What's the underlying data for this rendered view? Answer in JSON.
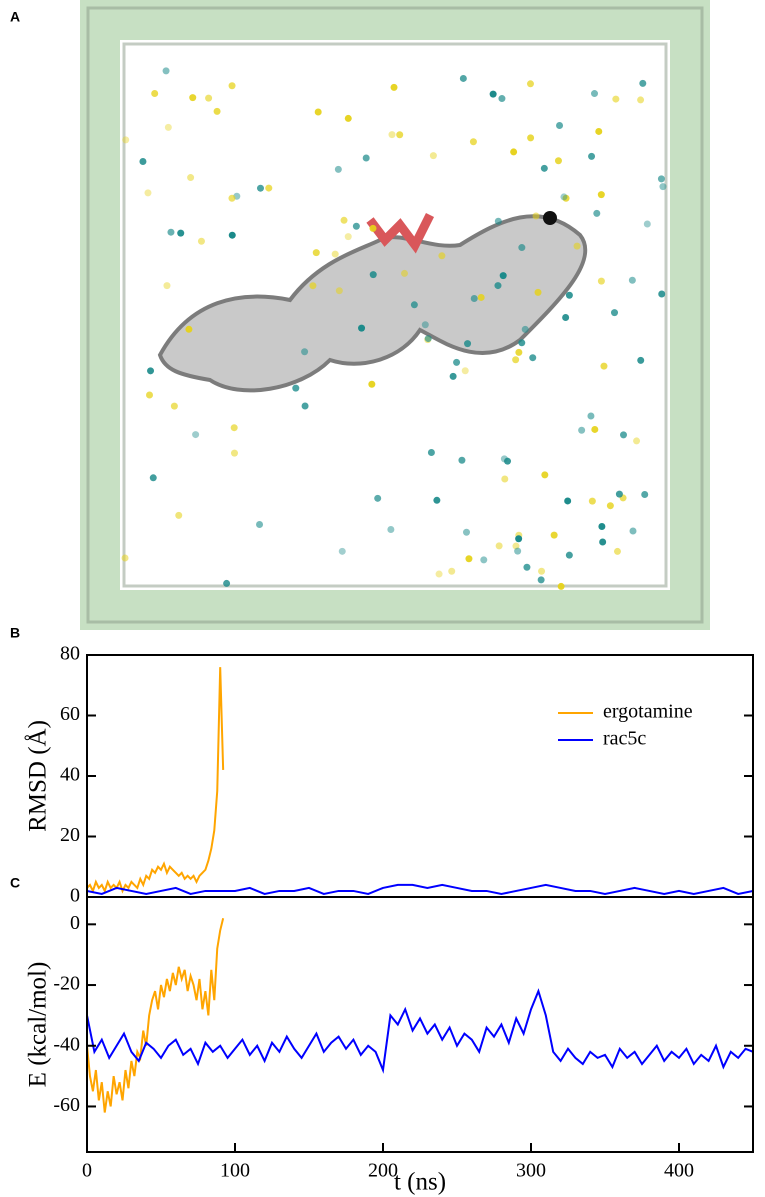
{
  "panel_labels": [
    "A",
    "B",
    "C"
  ],
  "chart_data": [
    {
      "type": "line",
      "ylabel": "RMSD (Å)",
      "xlim": [
        0,
        450
      ],
      "ylim": [
        0,
        80
      ],
      "yticks": [
        0,
        20,
        40,
        60,
        80
      ],
      "legend": "upper right",
      "series": [
        {
          "name": "ergotamine",
          "color": "#ffa500",
          "x": [
            0,
            2,
            4,
            6,
            8,
            10,
            12,
            14,
            16,
            18,
            20,
            22,
            24,
            26,
            28,
            30,
            32,
            34,
            36,
            38,
            40,
            42,
            44,
            46,
            48,
            50,
            52,
            54,
            56,
            58,
            60,
            62,
            64,
            66,
            68,
            70,
            72,
            74,
            76,
            78,
            80,
            82,
            84,
            86,
            88,
            90,
            92
          ],
          "values": [
            3,
            4,
            2,
            5,
            3,
            4,
            2,
            5,
            3,
            4,
            3,
            5,
            2,
            4,
            3,
            5,
            4,
            3,
            6,
            4,
            7,
            6,
            9,
            8,
            10,
            9,
            11,
            8,
            10,
            9,
            8,
            7,
            8,
            6,
            7,
            6,
            7,
            5,
            7,
            8,
            9,
            12,
            16,
            22,
            35,
            76,
            42
          ]
        },
        {
          "name": "rac5c",
          "color": "#0000ff",
          "x": [
            0,
            10,
            20,
            30,
            40,
            50,
            60,
            70,
            80,
            90,
            100,
            110,
            120,
            130,
            140,
            150,
            160,
            170,
            180,
            190,
            200,
            210,
            220,
            230,
            240,
            250,
            260,
            270,
            280,
            290,
            300,
            310,
            320,
            330,
            340,
            350,
            360,
            370,
            380,
            390,
            400,
            410,
            420,
            430,
            440,
            450
          ],
          "values": [
            2,
            1,
            3,
            2,
            1,
            2,
            3,
            1,
            2,
            2,
            2,
            3,
            1,
            2,
            2,
            3,
            1,
            2,
            2,
            1,
            3,
            4,
            4,
            3,
            4,
            3,
            2,
            2,
            1,
            2,
            3,
            4,
            3,
            2,
            2,
            1,
            2,
            3,
            2,
            1,
            2,
            1,
            2,
            3,
            1,
            2
          ]
        }
      ]
    },
    {
      "type": "line",
      "ylabel": "E (kcal/mol)",
      "xlabel": "t (ns)",
      "xlim": [
        0,
        450
      ],
      "xticks": [
        0,
        100,
        200,
        300,
        400
      ],
      "ylim": [
        -75,
        9
      ],
      "yticks": [
        0,
        -20,
        -40,
        -60
      ],
      "series": [
        {
          "name": "ergotamine",
          "color": "#ffa500",
          "x": [
            0,
            2,
            4,
            6,
            8,
            10,
            12,
            14,
            16,
            18,
            20,
            22,
            24,
            26,
            28,
            30,
            32,
            34,
            36,
            38,
            40,
            42,
            44,
            46,
            48,
            50,
            52,
            54,
            56,
            58,
            60,
            62,
            64,
            66,
            68,
            70,
            72,
            74,
            76,
            78,
            80,
            82,
            84,
            86,
            88,
            90,
            92
          ],
          "values": [
            -40,
            -50,
            -55,
            -48,
            -58,
            -52,
            -62,
            -55,
            -60,
            -50,
            -56,
            -52,
            -58,
            -48,
            -54,
            -45,
            -50,
            -42,
            -44,
            -35,
            -40,
            -30,
            -25,
            -22,
            -28,
            -20,
            -24,
            -18,
            -22,
            -16,
            -20,
            -14,
            -18,
            -15,
            -22,
            -17,
            -20,
            -25,
            -18,
            -28,
            -22,
            -30,
            -15,
            -25,
            -8,
            -2,
            2
          ]
        },
        {
          "name": "rac5c",
          "color": "#0000ff",
          "x": [
            0,
            5,
            10,
            15,
            20,
            25,
            30,
            35,
            40,
            45,
            50,
            55,
            60,
            65,
            70,
            75,
            80,
            85,
            90,
            95,
            100,
            105,
            110,
            115,
            120,
            125,
            130,
            135,
            140,
            145,
            150,
            155,
            160,
            165,
            170,
            175,
            180,
            185,
            190,
            195,
            200,
            205,
            210,
            215,
            220,
            225,
            230,
            235,
            240,
            245,
            250,
            255,
            260,
            265,
            270,
            275,
            280,
            285,
            290,
            295,
            300,
            305,
            310,
            315,
            320,
            325,
            330,
            335,
            340,
            345,
            350,
            355,
            360,
            365,
            370,
            375,
            380,
            385,
            390,
            395,
            400,
            405,
            410,
            415,
            420,
            425,
            430,
            435,
            440,
            445,
            450
          ],
          "values": [
            -30,
            -42,
            -38,
            -44,
            -40,
            -36,
            -42,
            -45,
            -39,
            -41,
            -44,
            -40,
            -38,
            -43,
            -41,
            -46,
            -39,
            -42,
            -40,
            -44,
            -41,
            -38,
            -43,
            -40,
            -45,
            -39,
            -42,
            -37,
            -41,
            -44,
            -40,
            -36,
            -42,
            -39,
            -37,
            -41,
            -38,
            -43,
            -40,
            -42,
            -48,
            -30,
            -33,
            -28,
            -35,
            -31,
            -36,
            -33,
            -38,
            -34,
            -40,
            -36,
            -38,
            -42,
            -34,
            -37,
            -33,
            -39,
            -31,
            -36,
            -28,
            -22,
            -30,
            -42,
            -45,
            -41,
            -44,
            -46,
            -42,
            -44,
            -43,
            -47,
            -41,
            -44,
            -42,
            -46,
            -43,
            -40,
            -45,
            -42,
            -44,
            -41,
            -46,
            -43,
            -45,
            -40,
            -47,
            -42,
            -44,
            -41,
            -42
          ]
        }
      ]
    }
  ]
}
